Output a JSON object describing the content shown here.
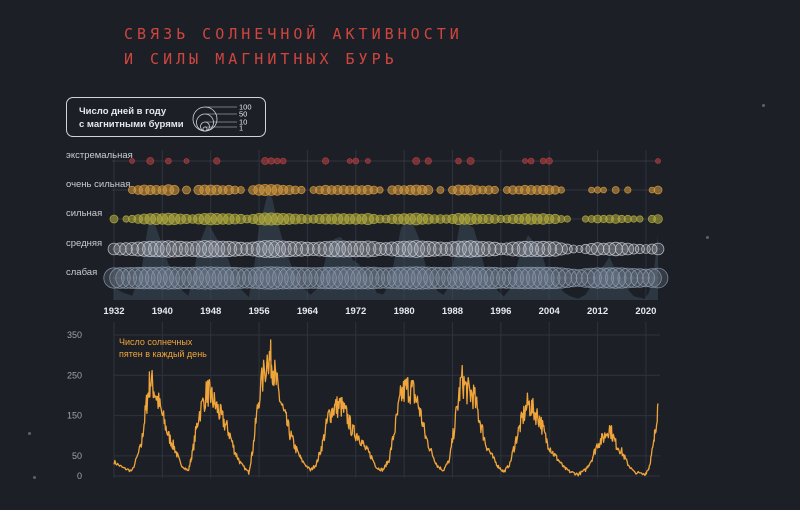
{
  "title": {
    "line1": "СВЯЗЬ СОЛНЕЧНОЙ АКТИВНОСТИ",
    "line2": "И СИЛЫ МАГНИТНЫХ БУРЬ"
  },
  "legend": {
    "line1": "Число дней в году",
    "line2": "с магнитными бурями",
    "sizes": [
      "100",
      "50",
      "10",
      "1"
    ]
  },
  "colors": {
    "background": "#1c1f26",
    "title": "#d1453f",
    "sunspot_line": "#f0a53a",
    "extreme": "#b9403f",
    "very_strong": "#d79a3e",
    "strong": "#b4ad3e",
    "moderate": "#c7cad3",
    "weak": "#8b9aae"
  },
  "chart_data": [
    {
      "type": "scatter",
      "description_free": true,
      "x_ticks": [
        "1932",
        "1940",
        "1948",
        "1956",
        "1964",
        "1972",
        "1980",
        "1988",
        "1996",
        "2004",
        "2012",
        "2020"
      ],
      "xlim": [
        1932,
        2022
      ],
      "categories": [
        "экстремальная",
        "очень сильная",
        "сильная",
        "средняя",
        "слабая"
      ],
      "series": [
        {
          "name": "экстремальная",
          "years": [
            1935,
            1938,
            1941,
            1944,
            1949,
            1957,
            1958,
            1959,
            1960,
            1967,
            1971,
            1972,
            1974,
            1982,
            1984,
            1989,
            1991,
            2000,
            2001,
            2003,
            2004,
            2022
          ],
          "days": [
            1,
            4,
            2,
            1,
            3,
            4,
            3,
            2,
            2,
            3,
            1,
            2,
            1,
            4,
            3,
            2,
            4,
            1,
            2,
            2,
            3,
            1
          ]
        },
        {
          "name": "очень сильная",
          "years": [
            1935,
            1936,
            1937,
            1938,
            1939,
            1940,
            1941,
            1942,
            1944,
            1946,
            1947,
            1948,
            1949,
            1950,
            1951,
            1952,
            1953,
            1955,
            1956,
            1957,
            1958,
            1959,
            1960,
            1961,
            1962,
            1963,
            1965,
            1966,
            1967,
            1968,
            1969,
            1970,
            1971,
            1972,
            1973,
            1974,
            1975,
            1976,
            1978,
            1979,
            1980,
            1981,
            1982,
            1983,
            1984,
            1986,
            1988,
            1989,
            1990,
            1991,
            1992,
            1993,
            1994,
            1995,
            1997,
            1998,
            1999,
            2000,
            2001,
            2002,
            2003,
            2004,
            2005,
            2006,
            2011,
            2012,
            2013,
            2015,
            2017,
            2021,
            2022
          ],
          "days": [
            5,
            8,
            12,
            10,
            9,
            8,
            14,
            10,
            6,
            10,
            12,
            12,
            11,
            8,
            10,
            6,
            4,
            8,
            14,
            16,
            15,
            14,
            10,
            9,
            6,
            5,
            4,
            6,
            10,
            8,
            9,
            9,
            7,
            9,
            8,
            10,
            6,
            3,
            7,
            9,
            8,
            10,
            12,
            10,
            9,
            4,
            6,
            12,
            10,
            12,
            8,
            6,
            7,
            5,
            4,
            7,
            6,
            10,
            9,
            8,
            10,
            9,
            7,
            3,
            2,
            3,
            2,
            4,
            3,
            2,
            6
          ]
        },
        {
          "name": "сильная",
          "years": [
            1932,
            1934,
            1935,
            1936,
            1937,
            1938,
            1939,
            1940,
            1941,
            1942,
            1943,
            1944,
            1945,
            1946,
            1947,
            1948,
            1949,
            1950,
            1951,
            1952,
            1953,
            1954,
            1955,
            1956,
            1957,
            1958,
            1959,
            1960,
            1961,
            1962,
            1963,
            1964,
            1965,
            1966,
            1967,
            1968,
            1969,
            1970,
            1971,
            1972,
            1973,
            1974,
            1975,
            1976,
            1977,
            1978,
            1979,
            1980,
            1981,
            1982,
            1983,
            1984,
            1985,
            1986,
            1987,
            1988,
            1989,
            1990,
            1991,
            1992,
            1993,
            1994,
            1995,
            1996,
            1997,
            1998,
            1999,
            2000,
            2001,
            2002,
            2003,
            2004,
            2005,
            2006,
            2007,
            2010,
            2011,
            2012,
            2013,
            2014,
            2015,
            2016,
            2017,
            2018,
            2019,
            2021,
            2022
          ],
          "days": [
            6,
            3,
            5,
            8,
            12,
            14,
            16,
            14,
            18,
            16,
            12,
            10,
            8,
            12,
            16,
            18,
            16,
            14,
            14,
            12,
            10,
            6,
            10,
            16,
            20,
            20,
            18,
            16,
            14,
            12,
            10,
            8,
            7,
            10,
            12,
            12,
            14,
            14,
            12,
            14,
            12,
            16,
            10,
            6,
            6,
            10,
            12,
            14,
            14,
            18,
            14,
            12,
            8,
            8,
            7,
            10,
            16,
            14,
            16,
            12,
            10,
            10,
            8,
            5,
            6,
            10,
            10,
            14,
            14,
            12,
            14,
            10,
            10,
            4,
            3,
            3,
            4,
            6,
            5,
            6,
            8,
            5,
            5,
            3,
            3,
            5,
            8
          ]
        },
        {
          "name": "средняя",
          "years": [
            1932,
            1933,
            1934,
            1935,
            1936,
            1937,
            1938,
            1939,
            1940,
            1941,
            1942,
            1943,
            1944,
            1945,
            1946,
            1947,
            1948,
            1949,
            1950,
            1951,
            1952,
            1953,
            1954,
            1955,
            1956,
            1957,
            1958,
            1959,
            1960,
            1961,
            1962,
            1963,
            1964,
            1965,
            1966,
            1967,
            1968,
            1969,
            1970,
            1971,
            1972,
            1973,
            1974,
            1975,
            1976,
            1977,
            1978,
            1979,
            1980,
            1981,
            1982,
            1983,
            1984,
            1985,
            1986,
            1987,
            1988,
            1989,
            1990,
            1991,
            1992,
            1993,
            1994,
            1995,
            1996,
            1997,
            1998,
            1999,
            2000,
            2001,
            2002,
            2003,
            2004,
            2005,
            2006,
            2007,
            2008,
            2009,
            2010,
            2011,
            2012,
            2013,
            2014,
            2015,
            2016,
            2017,
            2018,
            2019,
            2020,
            2021,
            2022
          ],
          "days": [
            18,
            20,
            22,
            24,
            28,
            32,
            36,
            38,
            40,
            42,
            40,
            36,
            30,
            34,
            40,
            44,
            42,
            40,
            38,
            36,
            30,
            26,
            22,
            28,
            38,
            44,
            46,
            44,
            40,
            36,
            32,
            30,
            26,
            24,
            28,
            34,
            38,
            40,
            40,
            38,
            38,
            36,
            40,
            34,
            24,
            22,
            28,
            34,
            38,
            40,
            44,
            40,
            36,
            30,
            28,
            24,
            32,
            38,
            40,
            42,
            38,
            34,
            30,
            26,
            18,
            20,
            28,
            30,
            36,
            34,
            34,
            36,
            32,
            30,
            20,
            12,
            6,
            4,
            10,
            16,
            22,
            18,
            22,
            26,
            22,
            18,
            12,
            10,
            8,
            12,
            18
          ]
        },
        {
          "name": "слабая",
          "years": [
            1932,
            1933,
            1934,
            1935,
            1936,
            1937,
            1938,
            1939,
            1940,
            1941,
            1942,
            1943,
            1944,
            1945,
            1946,
            1947,
            1948,
            1949,
            1950,
            1951,
            1952,
            1953,
            1954,
            1955,
            1956,
            1957,
            1958,
            1959,
            1960,
            1961,
            1962,
            1963,
            1964,
            1965,
            1966,
            1967,
            1968,
            1969,
            1970,
            1971,
            1972,
            1973,
            1974,
            1975,
            1976,
            1977,
            1978,
            1979,
            1980,
            1981,
            1982,
            1983,
            1984,
            1985,
            1986,
            1987,
            1988,
            1989,
            1990,
            1991,
            1992,
            1993,
            1994,
            1995,
            1996,
            1997,
            1998,
            1999,
            2000,
            2001,
            2002,
            2003,
            2004,
            2005,
            2006,
            2007,
            2008,
            2009,
            2010,
            2011,
            2012,
            2013,
            2014,
            2015,
            2016,
            2017,
            2018,
            2019,
            2020,
            2021,
            2022
          ],
          "days": [
            70,
            72,
            74,
            76,
            78,
            80,
            80,
            82,
            84,
            86,
            84,
            82,
            78,
            80,
            84,
            86,
            86,
            84,
            82,
            80,
            78,
            74,
            70,
            74,
            80,
            86,
            88,
            86,
            84,
            82,
            80,
            78,
            76,
            74,
            76,
            80,
            82,
            84,
            86,
            84,
            84,
            82,
            84,
            80,
            74,
            72,
            76,
            80,
            84,
            86,
            88,
            86,
            84,
            80,
            78,
            76,
            80,
            84,
            86,
            86,
            84,
            82,
            80,
            78,
            70,
            72,
            76,
            78,
            80,
            80,
            80,
            82,
            80,
            78,
            70,
            60,
            50,
            44,
            56,
            66,
            70,
            68,
            70,
            72,
            70,
            66,
            60,
            56,
            50,
            58,
            66
          ]
        }
      ]
    },
    {
      "type": "line",
      "y_ticks": [
        "0",
        "50",
        "150",
        "250",
        "350"
      ],
      "ylim": [
        0,
        360
      ],
      "xlim": [
        1932,
        2022
      ],
      "annotation_line1": "Число солнечных",
      "annotation_line2": "пятен в каждый день",
      "series": [
        {
          "name": "sunspots",
          "x": [
            1932,
            1933.5,
            1935,
            1936.5,
            1937.3,
            1938,
            1939,
            1940,
            1941,
            1942,
            1943,
            1944.3,
            1945,
            1946,
            1947.4,
            1948,
            1949,
            1950,
            1951,
            1952,
            1953,
            1954.3,
            1955,
            1956,
            1957.5,
            1958.2,
            1959,
            1960,
            1961,
            1962,
            1963,
            1964.5,
            1965.5,
            1966.5,
            1967.5,
            1968.5,
            1969.5,
            1970.5,
            1971.5,
            1972.5,
            1973.5,
            1974.5,
            1975.5,
            1976.5,
            1977.5,
            1978.5,
            1979.5,
            1980.5,
            1981.5,
            1982.5,
            1983.5,
            1984.5,
            1985.5,
            1986.5,
            1987.5,
            1988.5,
            1989.5,
            1990.5,
            1991.5,
            1992.5,
            1993.5,
            1994.5,
            1995.5,
            1996.5,
            1997.5,
            1998.5,
            1999.5,
            2000.5,
            2001.5,
            2002.5,
            2003.5,
            2004.5,
            2005.5,
            2006.5,
            2007.5,
            2008.8,
            2010,
            2011,
            2012,
            2013,
            2014,
            2015,
            2016,
            2017,
            2018,
            2019.8,
            2020.5,
            2021.3,
            2022
          ],
          "y": [
            35,
            20,
            12,
            75,
            170,
            240,
            200,
            150,
            100,
            70,
            30,
            12,
            60,
            150,
            210,
            200,
            170,
            140,
            110,
            60,
            30,
            8,
            70,
            200,
            300,
            280,
            220,
            160,
            110,
            70,
            40,
            14,
            30,
            80,
            150,
            170,
            175,
            150,
            110,
            100,
            70,
            50,
            20,
            15,
            40,
            120,
            200,
            220,
            210,
            170,
            100,
            60,
            25,
            14,
            40,
            140,
            240,
            210,
            200,
            140,
            80,
            50,
            25,
            10,
            30,
            90,
            140,
            180,
            160,
            140,
            90,
            60,
            40,
            20,
            10,
            4,
            15,
            40,
            80,
            95,
            120,
            80,
            60,
            30,
            10,
            3,
            20,
            80,
            180
          ]
        }
      ]
    }
  ]
}
